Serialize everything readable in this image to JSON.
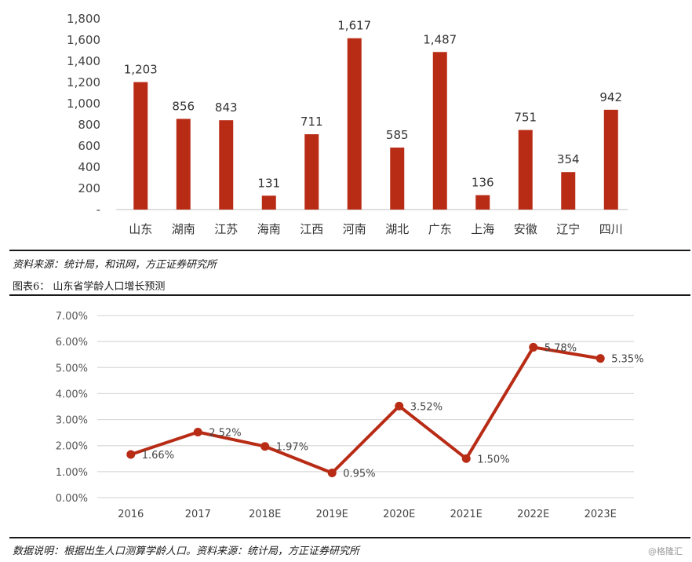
{
  "chart_data": [
    {
      "type": "bar",
      "categories": [
        "山东",
        "湖南",
        "江苏",
        "海南",
        "江西",
        "河南",
        "湖北",
        "广东",
        "上海",
        "安徽",
        "辽宁",
        "四川"
      ],
      "values": [
        1203,
        856,
        843,
        131,
        711,
        1617,
        585,
        1487,
        136,
        751,
        354,
        942
      ],
      "data_labels": [
        "1,203",
        "856",
        "843",
        "131",
        "711",
        "1,617",
        "585",
        "1,487",
        "136",
        "751",
        "354",
        "942"
      ],
      "ylim": [
        0,
        1800
      ],
      "yticks": [
        0,
        200,
        400,
        600,
        800,
        1000,
        1200,
        1400,
        1600,
        1800
      ],
      "ytick_labels": [
        "-",
        "200",
        "400",
        "600",
        "800",
        "1,000",
        "1,200",
        "1,400",
        "1,600",
        "1,800"
      ],
      "colors": {
        "bar": "#b82c16"
      }
    },
    {
      "type": "line",
      "categories": [
        "2016",
        "2017",
        "2018E",
        "2019E",
        "2020E",
        "2021E",
        "2022E",
        "2023E"
      ],
      "values": [
        1.66,
        2.52,
        1.97,
        0.95,
        3.52,
        1.5,
        5.78,
        5.35
      ],
      "data_labels": [
        "1.66%",
        "2.52%",
        "1.97%",
        "0.95%",
        "3.52%",
        "1.50%",
        "5.78%",
        "5.35%"
      ],
      "ylim": [
        0,
        7
      ],
      "yticks": [
        0,
        1,
        2,
        3,
        4,
        5,
        6,
        7
      ],
      "ytick_labels": [
        "0.00%",
        "1.00%",
        "2.00%",
        "3.00%",
        "4.00%",
        "5.00%",
        "6.00%",
        "7.00%"
      ],
      "grid": true,
      "colors": {
        "line": "#b82c16",
        "grid": "#d9d9d9"
      }
    }
  ],
  "captions": {
    "source1": "资料来源：统计局，和讯网，方正证券研究所",
    "figure_title": "图表6：  山东省学龄人口增长预测",
    "note2": "数据说明：根据出生人口测算学龄人口。资料来源：统计局，方正证券研究所",
    "watermark": "@格隆汇"
  }
}
